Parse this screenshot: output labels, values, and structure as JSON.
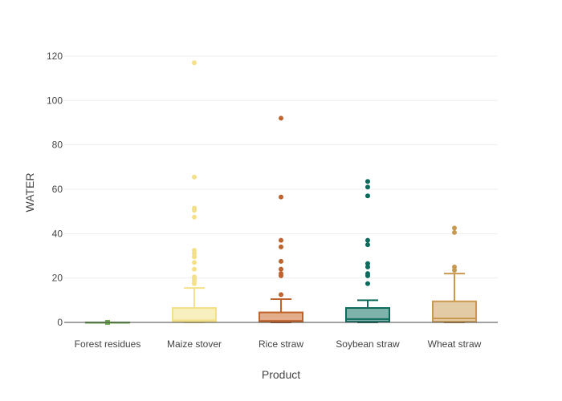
{
  "chart_data": {
    "type": "box",
    "xlabel": "Product",
    "ylabel": "WATER",
    "ylim": [
      0,
      125
    ],
    "yticks": [
      0,
      20,
      40,
      60,
      80,
      100,
      120
    ],
    "grid": true,
    "legend": "none",
    "categories": [
      "Forest residues",
      "Maize stover",
      "Rice straw",
      "Soybean straw",
      "Wheat straw"
    ],
    "boxes": [
      {
        "category": "Forest residues",
        "color": "#6aa84f",
        "fill": "#6aa84f",
        "q1": 0,
        "median": 0,
        "q3": 0,
        "whisker_low": 0,
        "whisker_high": 0,
        "outliers": []
      },
      {
        "category": "Maize stover",
        "color": "#f5e08a",
        "fill": "#f8efc0",
        "q1": 0.5,
        "median": 1.0,
        "q3": 6.5,
        "whisker_low": 0,
        "whisker_high": 15.5,
        "outliers": [
          17.5,
          18.5,
          19.5,
          20.5,
          24,
          27,
          29.5,
          31,
          32.5,
          47.5,
          50.5,
          51.5,
          65.5,
          117
        ]
      },
      {
        "category": "Rice straw",
        "color": "#c0622b",
        "fill": "#e3ad8c",
        "q1": 0.3,
        "median": 0.7,
        "q3": 4.5,
        "whisker_low": 0,
        "whisker_high": 10.5,
        "outliers": [
          12.5,
          21,
          22,
          24,
          27.5,
          34,
          37,
          56.5,
          92
        ]
      },
      {
        "category": "Soybean straw",
        "color": "#0d6b5e",
        "fill": "#7fb2aa",
        "q1": 0.3,
        "median": 1.5,
        "q3": 6.5,
        "whisker_low": 0,
        "whisker_high": 10,
        "outliers": [
          17.5,
          21,
          22,
          25,
          26.5,
          35,
          37,
          57,
          61,
          63.5
        ]
      },
      {
        "category": "Wheat straw",
        "color": "#c9994f",
        "fill": "#e3cba6",
        "q1": 0.3,
        "median": 1.8,
        "q3": 9.5,
        "whisker_low": 0,
        "whisker_high": 22,
        "outliers": [
          23.5,
          25,
          40.5,
          42.5
        ]
      }
    ]
  }
}
